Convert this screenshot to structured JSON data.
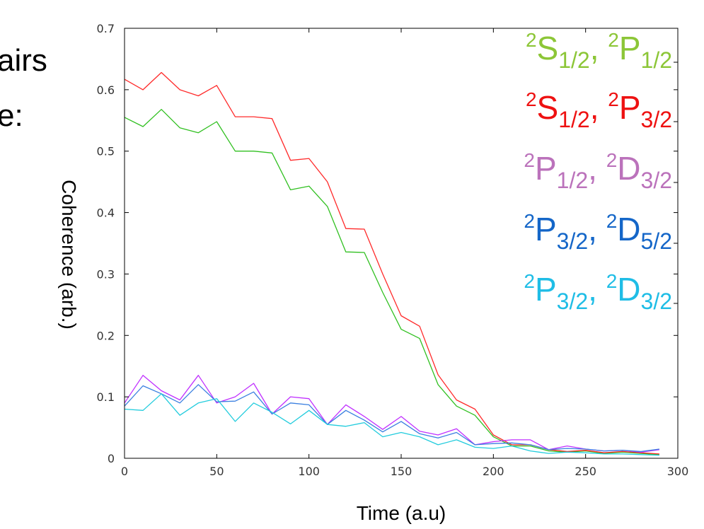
{
  "page_fragments": {
    "line1": "airs",
    "line2": "e:"
  },
  "chart_data": {
    "type": "line",
    "xlabel": "Time (a.u)",
    "ylabel": "Coherence (arb.)",
    "xlim": [
      0,
      300
    ],
    "ylim": [
      0,
      0.7
    ],
    "x_ticks": [
      0,
      50,
      100,
      150,
      200,
      250,
      300
    ],
    "y_ticks": [
      0,
      0.1,
      0.2,
      0.3,
      0.4,
      0.5,
      0.6,
      0.7
    ],
    "grid": false,
    "legend_position": "top-right",
    "series": [
      {
        "name": "2S1/2, 2P1/2",
        "legend": {
          "a": {
            "sup": "2",
            "base": "S",
            "sub": "1/2"
          },
          "b": {
            "sup": "2",
            "base": "P",
            "sub": "1/2"
          }
        },
        "color": "#31c021",
        "legend_color": "#8cc637",
        "x": [
          0,
          10,
          20,
          30,
          40,
          50,
          60,
          70,
          80,
          90,
          100,
          110,
          120,
          130,
          140,
          150,
          160,
          170,
          180,
          190,
          200,
          210,
          220,
          230,
          240,
          250,
          260,
          270,
          280,
          290
        ],
        "y": [
          0.555,
          0.54,
          0.568,
          0.538,
          0.53,
          0.548,
          0.5,
          0.5,
          0.497,
          0.437,
          0.443,
          0.41,
          0.336,
          0.335,
          0.27,
          0.21,
          0.195,
          0.12,
          0.085,
          0.07,
          0.035,
          0.02,
          0.02,
          0.012,
          0.01,
          0.012,
          0.008,
          0.01,
          0.008,
          0.006
        ]
      },
      {
        "name": "2S1/2, 2P3/2",
        "legend": {
          "a": {
            "sup": "2",
            "base": "S",
            "sub": "1/2"
          },
          "b": {
            "sup": "2",
            "base": "P",
            "sub": "3/2"
          }
        },
        "color": "#ff2a2a",
        "legend_color": "#ee1111",
        "x": [
          0,
          10,
          20,
          30,
          40,
          50,
          60,
          70,
          80,
          90,
          100,
          110,
          120,
          130,
          140,
          150,
          160,
          170,
          180,
          190,
          200,
          210,
          220,
          230,
          240,
          250,
          260,
          270,
          280,
          290
        ],
        "y": [
          0.617,
          0.6,
          0.628,
          0.6,
          0.59,
          0.607,
          0.556,
          0.556,
          0.553,
          0.485,
          0.488,
          0.45,
          0.374,
          0.373,
          0.3,
          0.232,
          0.215,
          0.136,
          0.095,
          0.08,
          0.038,
          0.022,
          0.022,
          0.014,
          0.011,
          0.013,
          0.009,
          0.011,
          0.009,
          0.007
        ]
      },
      {
        "name": "2P1/2, 2D3/2",
        "legend": {
          "a": {
            "sup": "2",
            "base": "P",
            "sub": "1/2"
          },
          "b": {
            "sup": "2",
            "base": "D",
            "sub": "3/2"
          }
        },
        "color": "#c030ff",
        "legend_color": "#bb72bb",
        "x": [
          0,
          10,
          20,
          30,
          40,
          50,
          60,
          70,
          80,
          90,
          100,
          110,
          120,
          130,
          140,
          150,
          160,
          170,
          180,
          190,
          200,
          210,
          220,
          230,
          240,
          250,
          260,
          270,
          280,
          290
        ],
        "y": [
          0.09,
          0.135,
          0.11,
          0.095,
          0.135,
          0.09,
          0.1,
          0.122,
          0.072,
          0.1,
          0.097,
          0.055,
          0.087,
          0.068,
          0.047,
          0.068,
          0.044,
          0.038,
          0.048,
          0.022,
          0.027,
          0.03,
          0.03,
          0.014,
          0.02,
          0.015,
          0.012,
          0.013,
          0.01,
          0.014
        ]
      },
      {
        "name": "2P3/2, 2D5/2",
        "legend": {
          "a": {
            "sup": "2",
            "base": "P",
            "sub": "3/2"
          },
          "b": {
            "sup": "2",
            "base": "D",
            "sub": "5/2"
          }
        },
        "color": "#3a7fe0",
        "legend_color": "#1466c8",
        "x": [
          0,
          10,
          20,
          30,
          40,
          50,
          60,
          70,
          80,
          90,
          100,
          110,
          120,
          130,
          140,
          150,
          160,
          170,
          180,
          190,
          200,
          210,
          220,
          230,
          240,
          250,
          260,
          270,
          280,
          290
        ],
        "y": [
          0.085,
          0.118,
          0.105,
          0.09,
          0.12,
          0.092,
          0.093,
          0.108,
          0.072,
          0.09,
          0.087,
          0.055,
          0.078,
          0.062,
          0.043,
          0.06,
          0.04,
          0.033,
          0.042,
          0.022,
          0.024,
          0.025,
          0.022,
          0.014,
          0.016,
          0.015,
          0.012,
          0.013,
          0.011,
          0.015
        ]
      },
      {
        "name": "2P3/2, 2D3/2",
        "legend": {
          "a": {
            "sup": "2",
            "base": "P",
            "sub": "3/2"
          },
          "b": {
            "sup": "2",
            "base": "D",
            "sub": "3/2"
          }
        },
        "color": "#22ccdd",
        "legend_color": "#1fbde6",
        "x": [
          0,
          10,
          20,
          30,
          40,
          50,
          60,
          70,
          80,
          90,
          100,
          110,
          120,
          130,
          140,
          150,
          160,
          170,
          180,
          190,
          200,
          210,
          220,
          230,
          240,
          250,
          260,
          270,
          280,
          290
        ],
        "y": [
          0.08,
          0.078,
          0.105,
          0.07,
          0.09,
          0.097,
          0.06,
          0.09,
          0.075,
          0.056,
          0.078,
          0.055,
          0.052,
          0.058,
          0.035,
          0.042,
          0.035,
          0.022,
          0.03,
          0.018,
          0.016,
          0.02,
          0.012,
          0.008,
          0.01,
          0.009,
          0.007,
          0.007,
          0.006,
          0.005
        ]
      }
    ]
  }
}
